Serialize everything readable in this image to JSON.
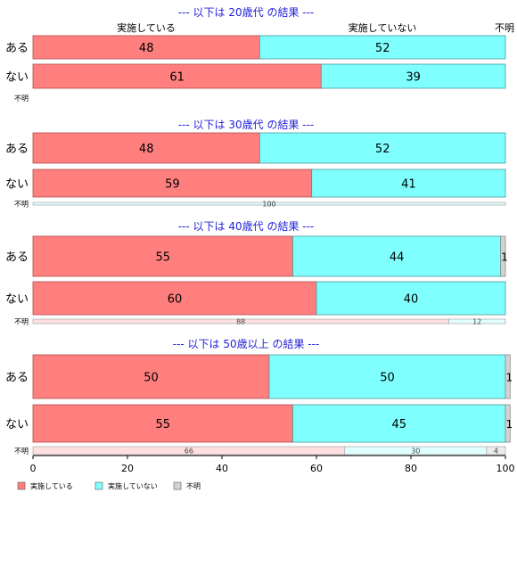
{
  "chart_data": {
    "type": "bar",
    "orientation": "horizontal",
    "stacked": true,
    "xlim": [
      0,
      100
    ],
    "x_ticks": [
      0,
      20,
      40,
      60,
      80,
      100
    ],
    "grid": false,
    "legend_placement": "bottom-left",
    "series_names": [
      "実施している",
      "実施していない",
      "不明"
    ],
    "colors": [
      "#ff7f7f",
      "#80ffff",
      "#d3d3d3"
    ],
    "column_headers": [
      "実施している",
      "実施していない",
      "不明"
    ],
    "panels": [
      {
        "title": "--- 以下は 20歳代 の結果 ---",
        "rows": [
          {
            "label": "ある",
            "values": [
              48,
              52,
              0
            ]
          },
          {
            "label": "ない",
            "values": [
              61,
              39,
              0
            ]
          },
          {
            "label": "不明",
            "values": [
              0,
              0,
              0
            ]
          }
        ]
      },
      {
        "title": "--- 以下は 30歳代 の結果 ---",
        "rows": [
          {
            "label": "ある",
            "values": [
              48,
              52,
              0
            ]
          },
          {
            "label": "ない",
            "values": [
              59,
              41,
              0
            ]
          },
          {
            "label": "不明",
            "values": [
              0,
              100,
              0
            ]
          }
        ]
      },
      {
        "title": "--- 以下は 40歳代 の結果 ---",
        "rows": [
          {
            "label": "ある",
            "values": [
              55,
              44,
              1
            ]
          },
          {
            "label": "ない",
            "values": [
              60,
              40,
              0
            ]
          },
          {
            "label": "不明",
            "values": [
              88,
              12,
              0
            ]
          }
        ]
      },
      {
        "title": "--- 以下は 50歳以上 の結果 ---",
        "rows": [
          {
            "label": "ある",
            "values": [
              50,
              50,
              1
            ]
          },
          {
            "label": "ない",
            "values": [
              55,
              45,
              1
            ]
          },
          {
            "label": "不明",
            "values": [
              66,
              30,
              4
            ]
          }
        ]
      }
    ]
  }
}
